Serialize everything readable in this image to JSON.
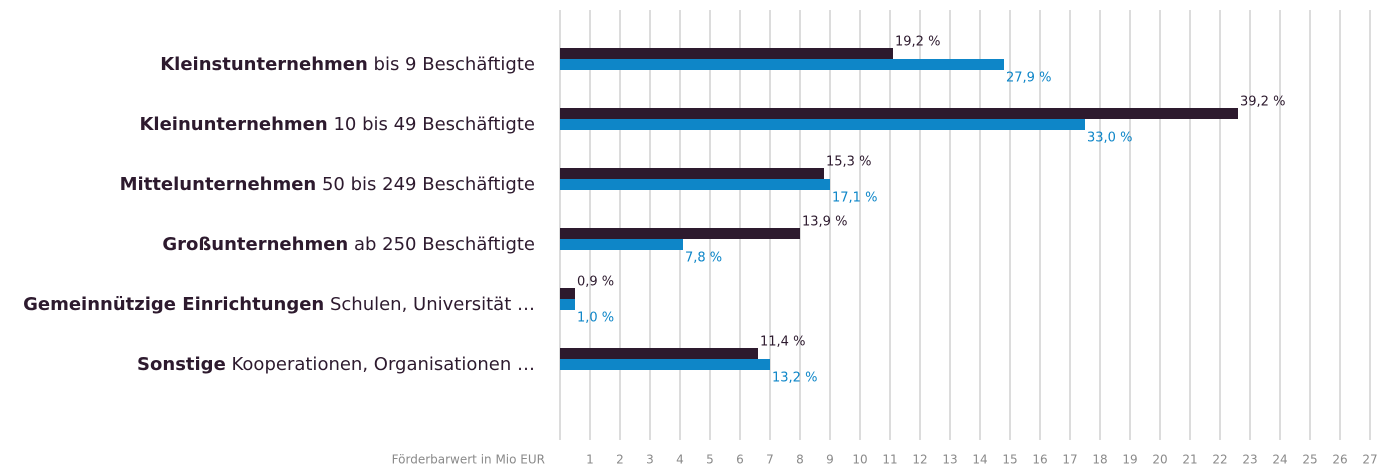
{
  "chart_data": {
    "type": "hbar",
    "categories": [
      "Kleinstunternehmen",
      "Kleinunternehmen",
      "Mittelunternehmen",
      "Großunternehmen",
      "Gemeinnützige Einrichtungen",
      "Sonstige"
    ],
    "category_details": [
      "bis 9 Beschäftigte",
      "10 bis 49 Beschäftigte",
      "50 bis 249 Beschäftigte",
      "ab 250 Beschäftigte",
      "Schulen, Universität …",
      "Kooperationen, Organisationen …"
    ],
    "series": [
      {
        "color": "#2d1a2e",
        "values": [
          11.1,
          22.6,
          8.8,
          8.0,
          0.5,
          6.6
        ],
        "share_labels": [
          "19,2 %",
          "39,2 %",
          "15,3 %",
          "13,9 %",
          "0,9 %",
          "11,4 %"
        ]
      },
      {
        "color": "#0e86c8",
        "values": [
          14.8,
          17.5,
          9.0,
          4.1,
          0.5,
          7.0
        ],
        "share_labels": [
          "27,9 %",
          "33,0 %",
          "17,1 %",
          "7,8 %",
          "1,0 %",
          "13,2 %"
        ]
      }
    ],
    "xlabel": "Förderbarwert in Mio EUR",
    "xlim": [
      0,
      27
    ],
    "xticks": [
      1,
      2,
      3,
      4,
      5,
      6,
      7,
      8,
      9,
      10,
      11,
      12,
      13,
      14,
      15,
      16,
      17,
      18,
      19,
      20,
      21,
      22,
      23,
      24,
      25,
      26,
      27
    ],
    "grid": true
  }
}
